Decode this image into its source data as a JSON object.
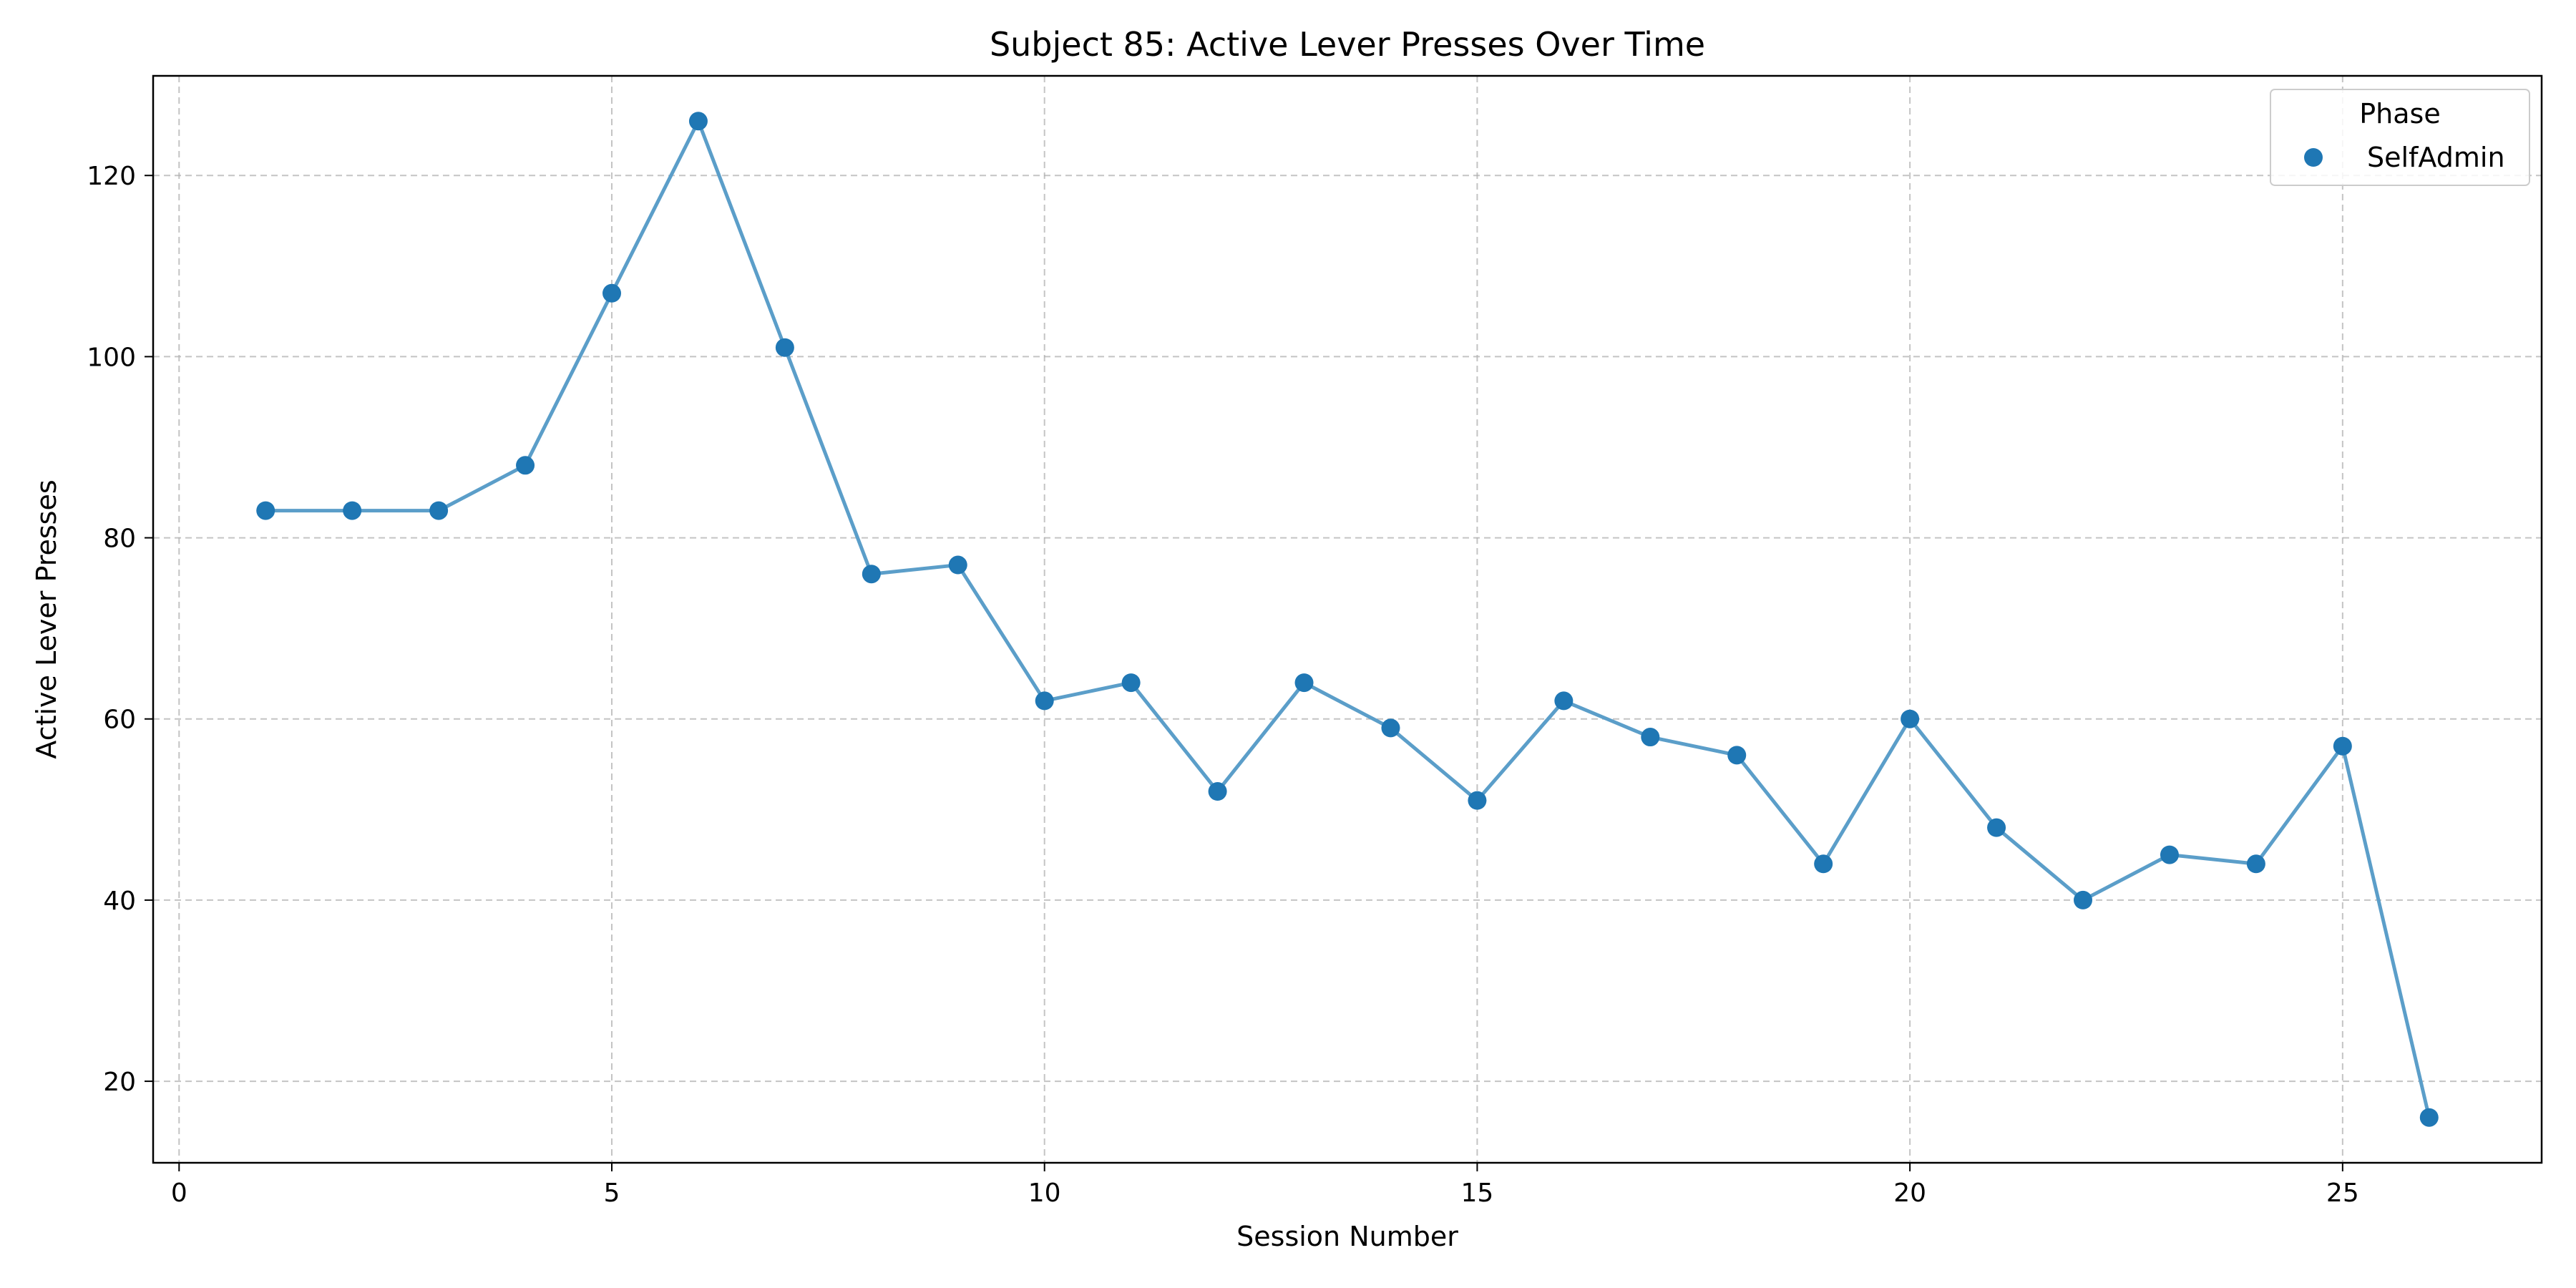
{
  "chart_data": {
    "type": "line",
    "title": "Subject 85: Active Lever Presses Over Time",
    "xlabel": "Session Number",
    "ylabel": "Active Lever Presses",
    "xlim": [
      -0.3,
      27.3
    ],
    "ylim": [
      11,
      131
    ],
    "xticks": [
      0,
      5,
      10,
      15,
      20,
      25
    ],
    "yticks": [
      20,
      40,
      60,
      80,
      100,
      120
    ],
    "grid": true,
    "legend": {
      "title": "Phase",
      "position": "top-right",
      "entries": [
        "SelfAdmin"
      ]
    },
    "series": [
      {
        "name": "SelfAdmin",
        "color": "#1f77b4",
        "line_color": "#5b9ec9",
        "x": [
          1,
          2,
          3,
          4,
          5,
          6,
          7,
          8,
          9,
          10,
          11,
          12,
          13,
          14,
          15,
          16,
          17,
          18,
          19,
          20,
          21,
          22,
          23,
          24,
          25,
          26
        ],
        "y": [
          83,
          83,
          83,
          88,
          107,
          126,
          101,
          76,
          77,
          62,
          64,
          52,
          64,
          59,
          51,
          62,
          58,
          56,
          44,
          60,
          48,
          40,
          45,
          44,
          57,
          16
        ]
      }
    ]
  }
}
